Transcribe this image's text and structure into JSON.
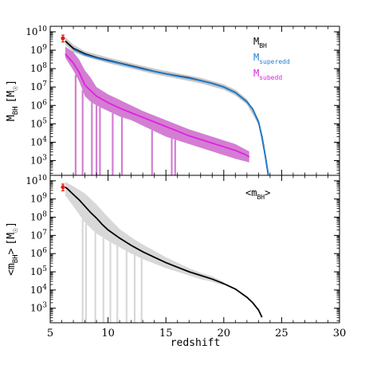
{
  "chart_data": [
    {
      "type": "line",
      "panel": "top",
      "xlabel": "",
      "ylabel": "M_BH [M_sun]",
      "ylabel_main": "M",
      "ylabel_sub": "BH",
      "ylabel_unit_open": "[M",
      "ylabel_unit_close": "]",
      "xlim": [
        5,
        30
      ],
      "ylim_log10": [
        2.2,
        10.3
      ],
      "yscale": "log",
      "y_tick_exponents": [
        3,
        4,
        5,
        6,
        7,
        8,
        9,
        10
      ],
      "legend": [
        {
          "main": "M",
          "sub": "BH",
          "color": "#000000"
        },
        {
          "main": "M",
          "sub": "superedd",
          "color": "#1e7fd6"
        },
        {
          "main": "M",
          "sub": "subedd",
          "color": "#e020e0"
        }
      ],
      "observed_point": {
        "x": 6.1,
        "log10_y": 9.65,
        "log10_err_low": 9.45,
        "log10_err_high": 9.82,
        "color": "#e02010"
      },
      "series": [
        {
          "name": "M_BH",
          "color": "#000000",
          "x": [
            6.3,
            7.0,
            8.0,
            9.0,
            10.0,
            11.0,
            12.0,
            13.0,
            14.0,
            15.0,
            16.0,
            17.0,
            18.0,
            19.0,
            20.0,
            21.0,
            22.0,
            22.5,
            23.0,
            23.3,
            23.6,
            23.85
          ],
          "log10_y": [
            9.5,
            9.1,
            8.8,
            8.6,
            8.45,
            8.3,
            8.15,
            8.0,
            7.85,
            7.72,
            7.6,
            7.5,
            7.35,
            7.2,
            7.0,
            6.7,
            6.2,
            5.8,
            5.1,
            4.3,
            3.2,
            2.2
          ]
        },
        {
          "name": "M_superedd",
          "color": "#1e7fd6",
          "x": [
            7.0,
            8.0,
            9.0,
            10.0,
            11.0,
            12.0,
            13.0,
            14.0,
            15.0,
            16.0,
            17.0,
            18.0,
            19.0,
            20.0,
            21.0,
            22.0,
            22.5,
            23.0,
            23.3,
            23.6,
            23.85
          ],
          "log10_y": [
            9.05,
            8.75,
            8.57,
            8.42,
            8.28,
            8.13,
            7.98,
            7.84,
            7.71,
            7.59,
            7.48,
            7.34,
            7.19,
            6.99,
            6.69,
            6.2,
            5.8,
            5.1,
            4.3,
            3.2,
            2.2
          ]
        },
        {
          "name": "M_subedd",
          "color": "#e020e0",
          "x": [
            6.3,
            7.0,
            7.5,
            8.0,
            8.5,
            9.0,
            10.0,
            11.0,
            12.0,
            13.0,
            14.0,
            15.0,
            16.0,
            17.0,
            18.0,
            19.0,
            20.0,
            21.0,
            21.8,
            22.2
          ],
          "log10_y": [
            8.8,
            8.3,
            7.8,
            7.1,
            6.8,
            6.5,
            6.15,
            5.85,
            5.6,
            5.35,
            5.1,
            4.85,
            4.6,
            4.35,
            4.15,
            3.95,
            3.75,
            3.55,
            3.35,
            3.2
          ]
        }
      ],
      "bands": [
        {
          "name": "M_BH range",
          "color": "#c8c8c8",
          "x": [
            6.3,
            7.0,
            8.0,
            10.0,
            12.0,
            14.0,
            16.0,
            18.0,
            20.0,
            21.0,
            22.0,
            23.0,
            23.6
          ],
          "log10_low": [
            9.3,
            8.9,
            8.65,
            8.3,
            8.0,
            7.7,
            7.45,
            7.2,
            6.85,
            6.55,
            6.05,
            4.95,
            3.0
          ],
          "log10_high": [
            9.7,
            9.3,
            8.95,
            8.6,
            8.3,
            8.0,
            7.75,
            7.5,
            7.15,
            6.85,
            6.35,
            5.25,
            3.4
          ]
        },
        {
          "name": "M_subedd range",
          "color": "#d37ed3",
          "x": [
            6.3,
            7.0,
            7.5,
            8.0,
            8.5,
            9.0,
            10.0,
            11.0,
            12.0,
            13.0,
            14.0,
            15.0,
            16.0,
            17.0,
            18.0,
            19.0,
            20.0,
            21.0,
            22.2
          ],
          "log10_low": [
            8.6,
            7.9,
            7.3,
            6.5,
            6.2,
            6.0,
            5.7,
            5.4,
            5.2,
            4.9,
            4.6,
            4.3,
            4.1,
            3.9,
            3.7,
            3.5,
            3.3,
            3.1,
            2.9
          ],
          "log10_high": [
            9.2,
            8.9,
            8.5,
            7.9,
            7.5,
            7.0,
            6.6,
            6.3,
            6.0,
            5.7,
            5.45,
            5.2,
            4.95,
            4.7,
            4.5,
            4.3,
            4.1,
            3.9,
            3.5
          ]
        }
      ],
      "band_spikes": [
        {
          "x": 7.2,
          "color": "#d37ed3"
        },
        {
          "x": 7.8,
          "color": "#d37ed3"
        },
        {
          "x": 8.6,
          "color": "#d37ed3"
        },
        {
          "x": 9.0,
          "color": "#d37ed3"
        },
        {
          "x": 9.3,
          "color": "#d37ed3"
        },
        {
          "x": 10.4,
          "color": "#d37ed3"
        },
        {
          "x": 11.2,
          "color": "#d37ed3"
        },
        {
          "x": 13.8,
          "color": "#d37ed3"
        },
        {
          "x": 15.5,
          "color": "#d37ed3"
        },
        {
          "x": 15.8,
          "color": "#d37ed3"
        }
      ]
    },
    {
      "type": "line",
      "panel": "bottom",
      "xlabel": "redshift",
      "ylabel": "<m_BH> [M_sun]",
      "ylabel_main": "<m",
      "ylabel_sub": "BH",
      "ylabel_close": ">",
      "ylabel_unit_open": "[M",
      "ylabel_unit_close": "]",
      "xlim": [
        5,
        30
      ],
      "x_ticks": [
        5,
        10,
        15,
        20,
        25,
        30
      ],
      "ylim_log10": [
        2.2,
        10.3
      ],
      "yscale": "log",
      "y_tick_exponents": [
        3,
        4,
        5,
        6,
        7,
        8,
        9,
        10
      ],
      "legend": [
        {
          "main": "<m",
          "sub": "BH",
          "close": ">",
          "color": "#000000"
        }
      ],
      "observed_point": {
        "x": 6.1,
        "log10_y": 9.65,
        "log10_err_low": 9.45,
        "log10_err_high": 9.82,
        "color": "#e02010"
      },
      "series": [
        {
          "name": "<m_BH>",
          "color": "#000000",
          "x": [
            6.3,
            6.5,
            7.0,
            7.5,
            8.0,
            8.5,
            9.0,
            9.5,
            10.0,
            11.0,
            12.0,
            13.0,
            14.0,
            15.0,
            16.0,
            17.0,
            18.0,
            19.0,
            20.0,
            21.0,
            22.0,
            22.5,
            23.0,
            23.3
          ],
          "log10_y": [
            9.65,
            9.55,
            9.25,
            8.95,
            8.6,
            8.25,
            7.95,
            7.6,
            7.3,
            6.85,
            6.45,
            6.1,
            5.8,
            5.5,
            5.25,
            5.0,
            4.8,
            4.6,
            4.35,
            4.05,
            3.6,
            3.3,
            2.9,
            2.5
          ]
        }
      ],
      "bands": [
        {
          "name": "<m_BH> range",
          "color": "#d8d8d8",
          "x": [
            6.3,
            7.0,
            8.0,
            9.0,
            10.0,
            11.0,
            12.0,
            13.0,
            14.0,
            15.0,
            16.0,
            17.0,
            18.0,
            19.0,
            20.0
          ],
          "log10_low": [
            9.2,
            8.6,
            7.7,
            7.1,
            6.7,
            6.35,
            6.0,
            5.7,
            5.45,
            5.2,
            5.0,
            4.8,
            4.6,
            4.45,
            4.25
          ],
          "log10_high": [
            9.95,
            9.7,
            9.3,
            8.7,
            8.0,
            7.35,
            6.9,
            6.5,
            6.15,
            5.8,
            5.5,
            5.2,
            4.95,
            4.75,
            4.45
          ]
        }
      ],
      "band_spikes": [
        {
          "x": 7.8,
          "color": "#d8d8d8"
        },
        {
          "x": 8.1,
          "color": "#d8d8d8"
        },
        {
          "x": 8.9,
          "color": "#d8d8d8"
        },
        {
          "x": 9.6,
          "color": "#d8d8d8"
        },
        {
          "x": 10.2,
          "color": "#d8d8d8"
        },
        {
          "x": 10.8,
          "color": "#d8d8d8"
        },
        {
          "x": 11.6,
          "color": "#d8d8d8"
        },
        {
          "x": 12.3,
          "color": "#d8d8d8"
        },
        {
          "x": 12.9,
          "color": "#d8d8d8"
        }
      ]
    }
  ]
}
